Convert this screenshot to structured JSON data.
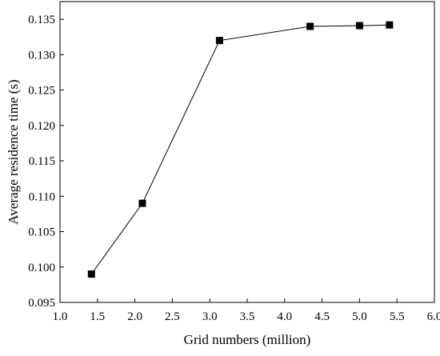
{
  "chart_data": {
    "type": "line",
    "title": "",
    "xlabel": "Grid numbers (million)",
    "ylabel": "Average residence time (s)",
    "xlim": [
      1.0,
      6.0
    ],
    "ylim": [
      0.095,
      0.1375
    ],
    "xticks": [
      "1.0",
      "1.5",
      "2.0",
      "2.5",
      "3.0",
      "3.5",
      "4.0",
      "4.5",
      "5.0",
      "5.5",
      "6.0"
    ],
    "yticks": [
      "0.095",
      "0.100",
      "0.105",
      "0.110",
      "0.115",
      "0.120",
      "0.125",
      "0.130",
      "0.135"
    ],
    "grid": false,
    "marker": "square",
    "series": [
      {
        "x": [
          1.42,
          2.1,
          3.13,
          4.34,
          5.0,
          5.4
        ],
        "y": [
          0.099,
          0.109,
          0.132,
          0.134,
          0.1341,
          0.1342
        ]
      }
    ]
  }
}
